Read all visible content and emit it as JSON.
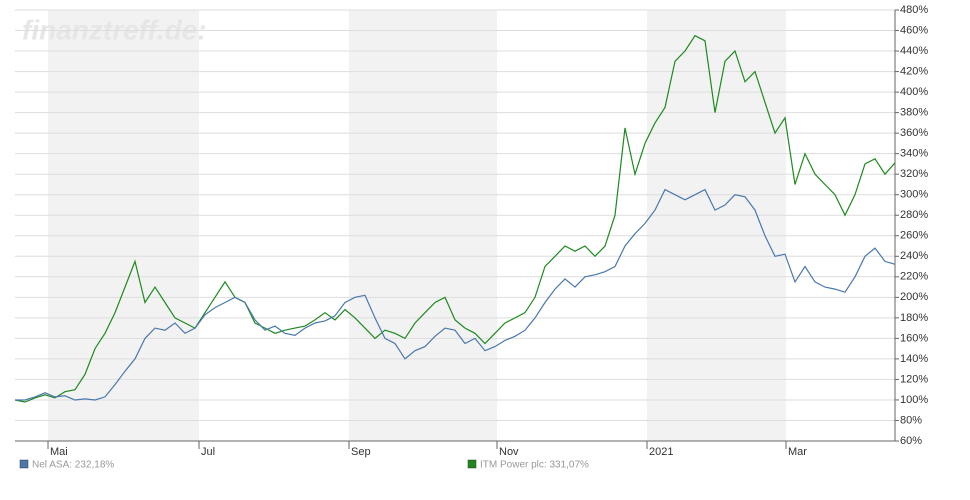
{
  "chart_data": {
    "type": "line",
    "watermark": "finanztreff.de:",
    "x": [
      0,
      1,
      2,
      3,
      4,
      5,
      6,
      7,
      8,
      9,
      10,
      11,
      12,
      13,
      14,
      15,
      16,
      17,
      18,
      19,
      20,
      21,
      22,
      23,
      24,
      25,
      26,
      27,
      28,
      29,
      30,
      31,
      32,
      33,
      34,
      35,
      36,
      37,
      38,
      39,
      40,
      41,
      42,
      43,
      44,
      45,
      46,
      47,
      48,
      49,
      50,
      51,
      52,
      53,
      54,
      55,
      56,
      57,
      58,
      59,
      60,
      61,
      62,
      63,
      64,
      65,
      66,
      67,
      68,
      69,
      70,
      71,
      72,
      73,
      74,
      75,
      76,
      77,
      78,
      79,
      80,
      81,
      82,
      83,
      84,
      85,
      86,
      87,
      88
    ],
    "xlim": [
      0,
      88
    ],
    "xticks": [
      {
        "value": 3.3,
        "label": "Mai"
      },
      {
        "value": 18.4,
        "label": "Jul"
      },
      {
        "value": 33.4,
        "label": "Sep"
      },
      {
        "value": 48.2,
        "label": "Nov"
      },
      {
        "value": 63.2,
        "label": "2021"
      },
      {
        "value": 77.1,
        "label": "Mar"
      }
    ],
    "ylim": [
      60,
      480
    ],
    "yticks": [
      {
        "value": 60,
        "label": "60%"
      },
      {
        "value": 80,
        "label": "80%"
      },
      {
        "value": 100,
        "label": "100%"
      },
      {
        "value": 120,
        "label": "120%"
      },
      {
        "value": 140,
        "label": "140%"
      },
      {
        "value": 160,
        "label": "160%"
      },
      {
        "value": 180,
        "label": "180%"
      },
      {
        "value": 200,
        "label": "200%"
      },
      {
        "value": 220,
        "label": "220%"
      },
      {
        "value": 240,
        "label": "240%"
      },
      {
        "value": 260,
        "label": "260%"
      },
      {
        "value": 280,
        "label": "280%"
      },
      {
        "value": 300,
        "label": "300%"
      },
      {
        "value": 320,
        "label": "320%"
      },
      {
        "value": 340,
        "label": "340%"
      },
      {
        "value": 360,
        "label": "360%"
      },
      {
        "value": 380,
        "label": "380%"
      },
      {
        "value": 400,
        "label": "400%"
      },
      {
        "value": 420,
        "label": "420%"
      },
      {
        "value": 440,
        "label": "440%"
      },
      {
        "value": 460,
        "label": "460%"
      },
      {
        "value": 480,
        "label": "480%"
      }
    ],
    "grid": true,
    "series": [
      {
        "name": "Nel ASA: 232,18%",
        "color": "#4a78ae",
        "values": [
          100,
          100,
          103,
          107,
          103,
          104,
          100,
          101,
          100,
          103,
          115,
          128,
          140,
          160,
          170,
          168,
          175,
          165,
          170,
          183,
          190,
          195,
          200,
          195,
          178,
          168,
          172,
          165,
          163,
          170,
          175,
          177,
          182,
          195,
          200,
          202,
          180,
          160,
          155,
          140,
          148,
          152,
          162,
          170,
          168,
          155,
          160,
          148,
          152,
          158,
          162,
          168,
          180,
          195,
          208,
          218,
          210,
          220,
          222,
          225,
          230,
          250,
          262,
          272,
          285,
          305,
          300,
          295,
          300,
          305,
          285,
          290,
          300,
          298,
          285,
          260,
          240,
          242,
          215,
          230,
          215,
          210,
          208,
          205,
          220,
          240,
          248,
          235,
          232.18
        ]
      },
      {
        "name": "ITM Power plc: 331,07%",
        "color": "#1e8a1e",
        "values": [
          100,
          98,
          102,
          105,
          102,
          108,
          110,
          125,
          150,
          165,
          185,
          210,
          235,
          195,
          210,
          195,
          180,
          175,
          170,
          185,
          200,
          215,
          200,
          195,
          175,
          170,
          165,
          168,
          170,
          172,
          178,
          185,
          178,
          188,
          180,
          170,
          160,
          168,
          165,
          160,
          175,
          185,
          195,
          200,
          178,
          170,
          165,
          155,
          165,
          175,
          180,
          185,
          200,
          230,
          240,
          250,
          245,
          250,
          240,
          250,
          280,
          365,
          320,
          350,
          370,
          385,
          430,
          440,
          455,
          450,
          380,
          430,
          440,
          410,
          420,
          390,
          360,
          375,
          310,
          340,
          320,
          310,
          300,
          280,
          300,
          330,
          335,
          320,
          331.07
        ]
      }
    ]
  }
}
